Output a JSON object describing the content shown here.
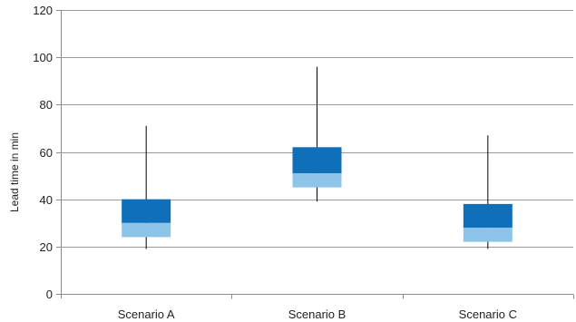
{
  "chart_data": {
    "type": "box",
    "title": "",
    "xlabel": "",
    "ylabel": "Lead time in min",
    "ylim": [
      0,
      120
    ],
    "yticks": [
      0,
      20,
      40,
      60,
      80,
      100,
      120
    ],
    "grid": "horizontal",
    "categories": [
      "Scenario A",
      "Scenario B",
      "Scenario C"
    ],
    "boxes": [
      {
        "category": "Scenario A",
        "min": 19,
        "q1": 24,
        "median": 30,
        "q3": 40,
        "max": 71
      },
      {
        "category": "Scenario B",
        "min": 39,
        "q1": 45,
        "median": 51,
        "q3": 62,
        "max": 96
      },
      {
        "category": "Scenario C",
        "min": 19,
        "q1": 22,
        "median": 28,
        "q3": 38,
        "max": 67
      }
    ],
    "colors": {
      "upper_box": "#0f6fb8",
      "lower_box": "#8fc4e9",
      "whisker": "#000000",
      "grid": "#9a9a9a",
      "axis": "#8c8c8c"
    }
  }
}
